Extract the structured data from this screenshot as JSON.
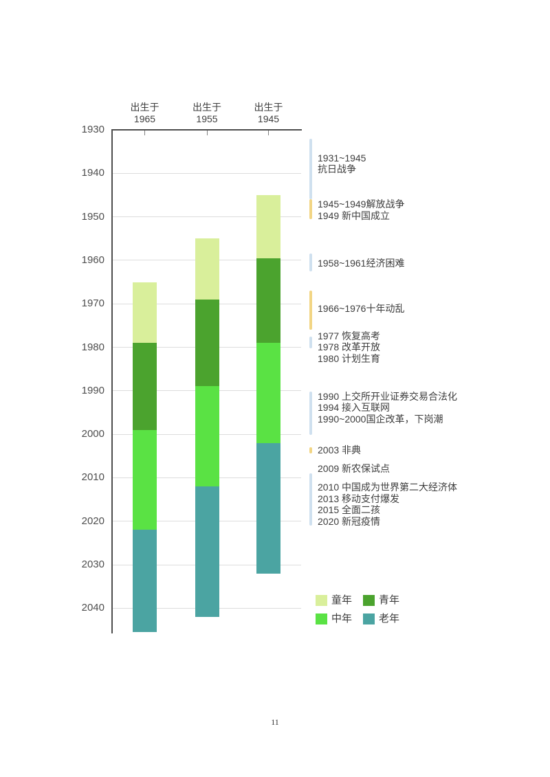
{
  "page": {
    "number": "11",
    "background": "#ffffff"
  },
  "chart_data": {
    "type": "bar",
    "subtype": "stacked-vertical-timeline",
    "title": "",
    "y_axis": {
      "unit": "year",
      "ticks": [
        1930,
        1940,
        1950,
        1960,
        1970,
        1980,
        1990,
        2000,
        2010,
        2020,
        2030,
        2040
      ],
      "range": [
        1930,
        2046
      ],
      "grid": true
    },
    "stages": [
      {
        "id": "childhood",
        "label": "童年",
        "color": "#d9ef9b"
      },
      {
        "id": "youth",
        "label": "青年",
        "color": "#4ba32e"
      },
      {
        "id": "midlife",
        "label": "中年",
        "color": "#5ae244"
      },
      {
        "id": "oldage",
        "label": "老年",
        "color": "#4ba4a2"
      }
    ],
    "bars": [
      {
        "header": [
          "出生于",
          "1965"
        ],
        "birth_year": 1965,
        "segments": [
          {
            "stage": "童年",
            "from": 1965,
            "to": 1979
          },
          {
            "stage": "青年",
            "from": 1979,
            "to": 1999
          },
          {
            "stage": "中年",
            "from": 1999,
            "to": 2022
          },
          {
            "stage": "老年",
            "from": 2022,
            "to": 2045.5
          }
        ]
      },
      {
        "header": [
          "出生于",
          "1955"
        ],
        "birth_year": 1955,
        "segments": [
          {
            "stage": "童年",
            "from": 1955,
            "to": 1969
          },
          {
            "stage": "青年",
            "from": 1969,
            "to": 1989
          },
          {
            "stage": "中年",
            "from": 1989,
            "to": 2012
          },
          {
            "stage": "老年",
            "from": 2012,
            "to": 2042
          }
        ]
      },
      {
        "header": [
          "出生于",
          "1945"
        ],
        "birth_year": 1945,
        "segments": [
          {
            "stage": "童年",
            "from": 1945,
            "to": 1959.5
          },
          {
            "stage": "青年",
            "from": 1959.5,
            "to": 1979
          },
          {
            "stage": "中年",
            "from": 1979,
            "to": 2002
          },
          {
            "stage": "老年",
            "from": 2002,
            "to": 2032
          }
        ]
      }
    ],
    "annotation_colors": {
      "war_period": "#cfe0ef",
      "milestone": "#f2d584"
    },
    "annotations": [
      {
        "marker_color": "#cfe0ef",
        "marker_from": 1932,
        "marker_to": 1946,
        "label_top_year": 1935.2,
        "lines": [
          "1931~1945",
          "抗日战争"
        ]
      },
      {
        "marker_color": "#f2d584",
        "marker_from": 1946,
        "marker_to": 1950.5,
        "label_top_year": 1945.8,
        "lines": [
          "1945~1949解放战争",
          "1949 新中国成立"
        ]
      },
      {
        "marker_color": "#cfe0ef",
        "marker_from": 1958.5,
        "marker_to": 1962.5,
        "label_top_year": 1959.4,
        "lines": [
          "1958~1961经济困难"
        ]
      },
      {
        "marker_color": "#f2d584",
        "marker_from": 1967,
        "marker_to": 1976,
        "label_top_year": 1969.8,
        "lines": [
          "1966~1976十年动乱"
        ]
      },
      {
        "marker_color": "#cfe0ef",
        "marker_from": 1977.5,
        "marker_to": 1980.3,
        "label_top_year": 1976.1,
        "lines": [
          "1977 恢复高考",
          "1978 改革开放",
          "1980 计划生育"
        ]
      },
      {
        "marker_color": "#cfe0ef",
        "marker_from": 1990.2,
        "marker_to": 2000.2,
        "label_top_year": 1990.0,
        "lines": [
          "1990 上交所开业证券交易合法化",
          "1994 接入互联网",
          "1990~2000国企改革，下岗潮"
        ]
      },
      {
        "marker_color": "#f2d584",
        "marker_from": 2003,
        "marker_to": 2004.4,
        "label_top_year": 2002.4,
        "lines": [
          "2003 非典"
        ]
      },
      {
        "marker_color": "#cfe0ef",
        "marker_from": 2009,
        "marker_to": 2021,
        "label_top_year": 2006.6,
        "lines": [
          "2009 新农保试点"
        ]
      },
      {
        "marker_color": null,
        "marker_from": null,
        "marker_to": null,
        "label_top_year": 2010.9,
        "lines": [
          "2010 中国成为世界第二大经济体",
          "2013 移动支付爆发",
          "2015 全面二孩",
          "2020 新冠疫情"
        ]
      }
    ],
    "legend": {
      "position": "bottom-right",
      "rows": [
        [
          "童年",
          "青年"
        ],
        [
          "中年",
          "老年"
        ]
      ]
    }
  }
}
